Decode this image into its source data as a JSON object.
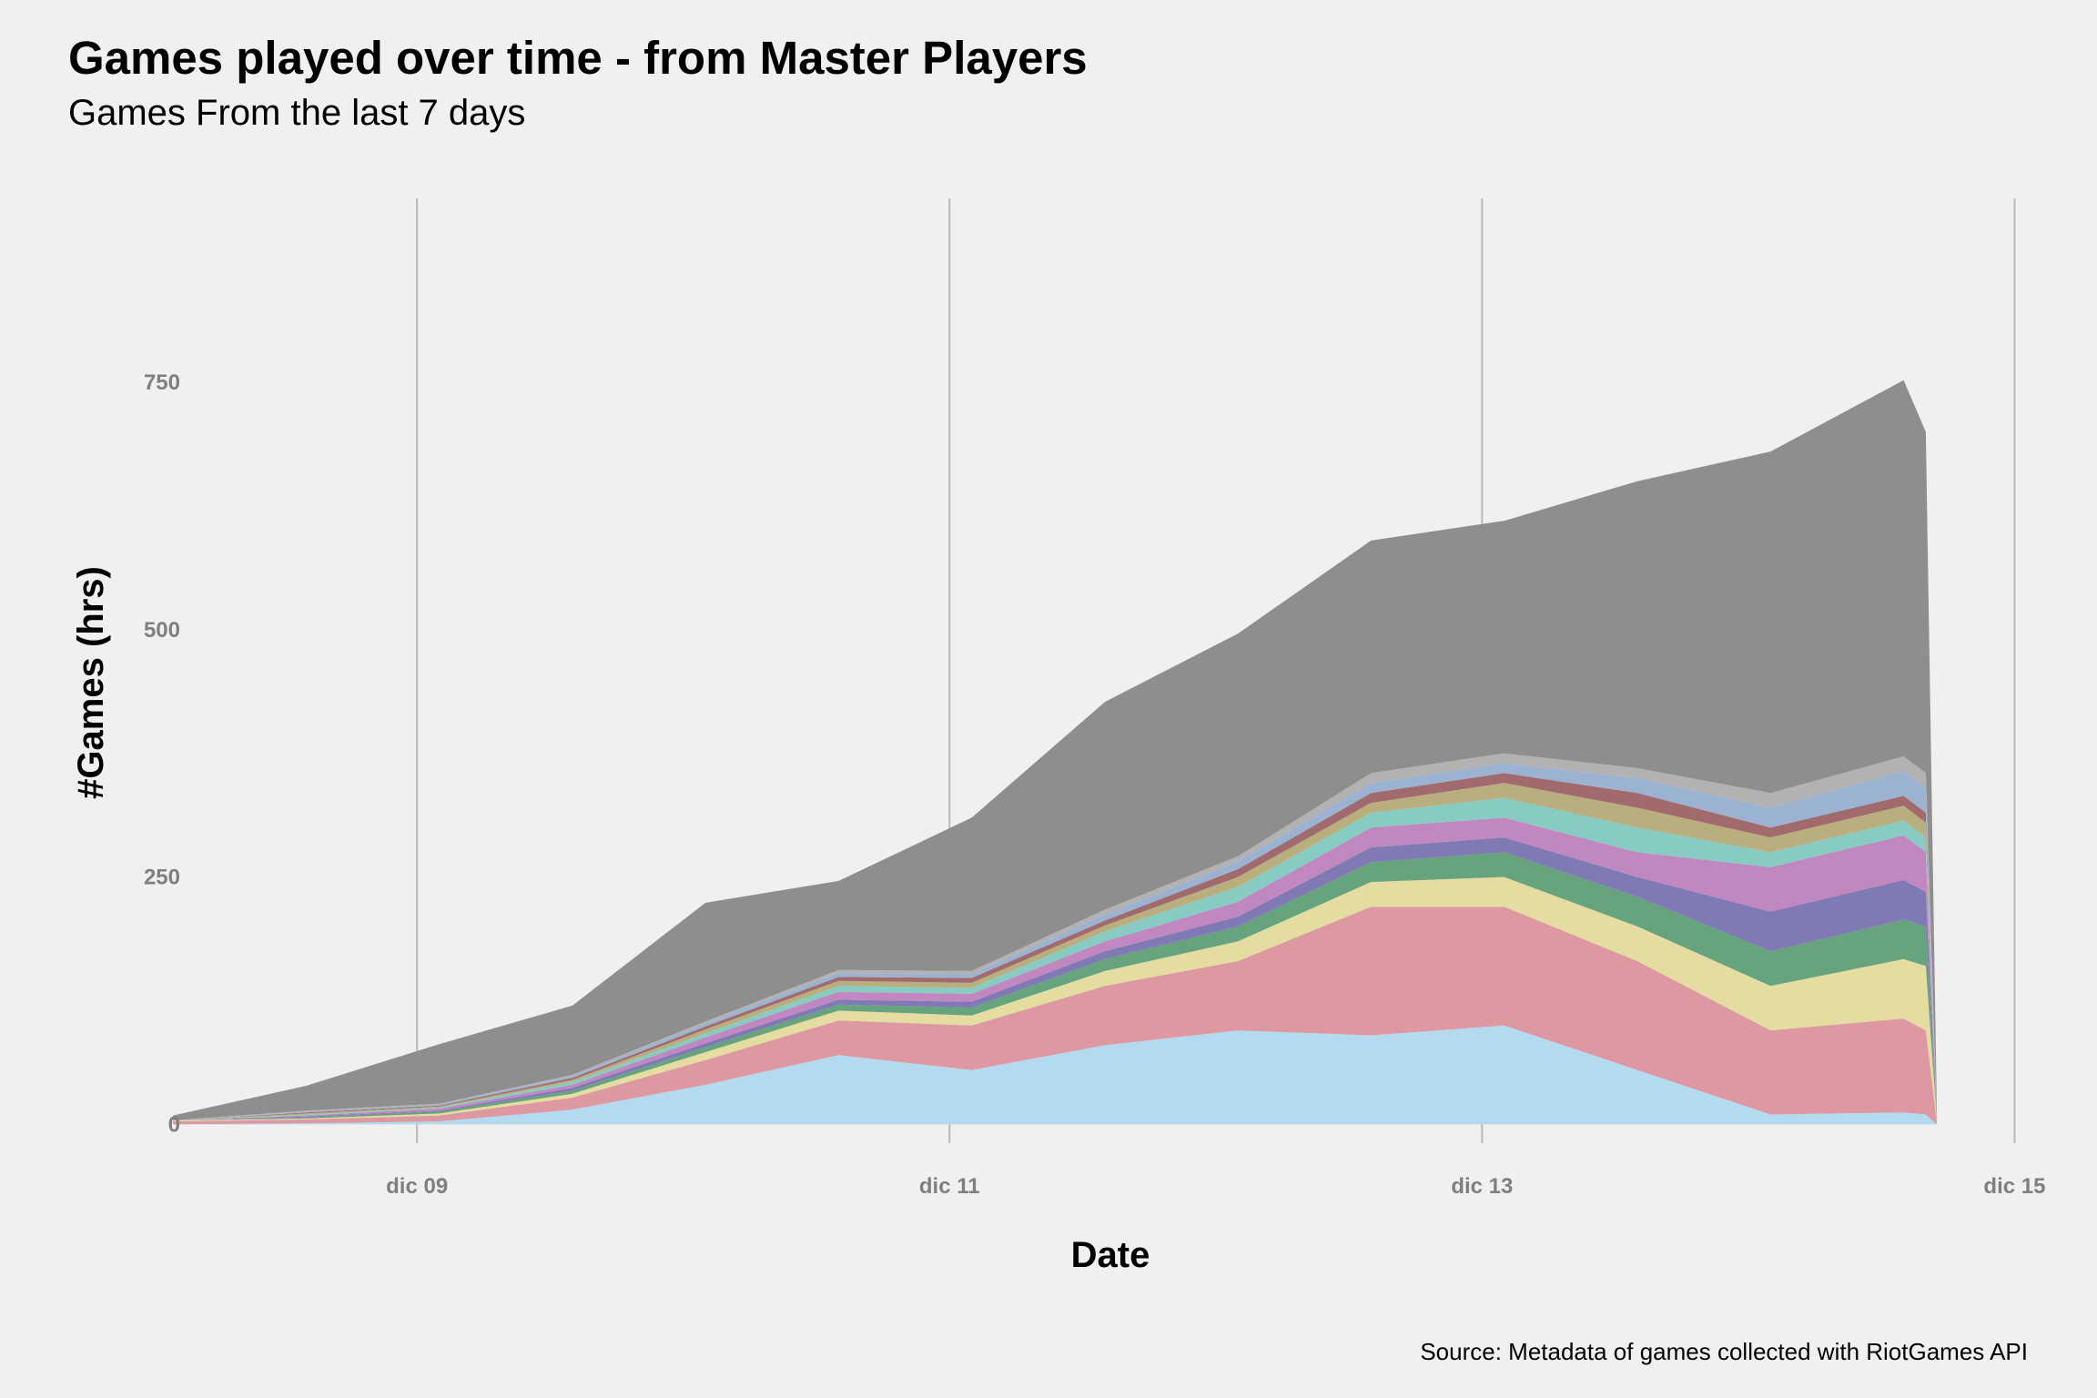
{
  "chart_data": {
    "type": "area",
    "stacked": true,
    "title": "Games played over time - from Master Players",
    "subtitle": "Games From the last 7 days",
    "xlabel": "Date",
    "ylabel": "#Games (hrs)",
    "caption": "Source: Metadata of games collected with RiotGames API",
    "x_ticks": [
      "dic 09",
      "dic 11",
      "dic 13",
      "dic 15"
    ],
    "x_tick_hours": [
      36,
      84,
      132,
      180
    ],
    "y_ticks": [
      0,
      250,
      500,
      750
    ],
    "xlim_hours": [
      14,
      183
    ],
    "ylim": [
      -30,
      945
    ],
    "grid": {
      "x_major": true,
      "y": false
    },
    "legend": "none",
    "x_hours": [
      14,
      26,
      38,
      50,
      62,
      74,
      86,
      98,
      110,
      122,
      134,
      146,
      158,
      170,
      172,
      173
    ],
    "series": [
      {
        "color": "#b3daef",
        "values": [
          0,
          1,
          3,
          15,
          40,
          70,
          55,
          80,
          95,
          90,
          100,
          55,
          10,
          12,
          10,
          0
        ]
      },
      {
        "color": "#dd98a2",
        "values": [
          3,
          4,
          6,
          12,
          25,
          35,
          45,
          60,
          70,
          130,
          120,
          110,
          85,
          95,
          85,
          2
        ]
      },
      {
        "color": "#e4dca0",
        "values": [
          1,
          1,
          2,
          4,
          8,
          10,
          10,
          15,
          20,
          25,
          30,
          35,
          45,
          60,
          65,
          1
        ]
      },
      {
        "color": "#67a37c",
        "values": [
          0,
          1,
          2,
          3,
          5,
          6,
          8,
          12,
          15,
          20,
          25,
          30,
          35,
          40,
          40,
          0
        ]
      },
      {
        "color": "#7f7ab3",
        "values": [
          0,
          1,
          1,
          3,
          4,
          5,
          6,
          8,
          10,
          15,
          15,
          20,
          40,
          40,
          35,
          0
        ]
      },
      {
        "color": "#c187c0",
        "values": [
          0,
          1,
          2,
          3,
          6,
          8,
          8,
          10,
          15,
          20,
          20,
          25,
          45,
          45,
          40,
          1
        ]
      },
      {
        "color": "#87cbc3",
        "values": [
          0,
          1,
          1,
          3,
          4,
          6,
          6,
          10,
          15,
          15,
          20,
          25,
          15,
          15,
          15,
          0
        ]
      },
      {
        "color": "#b9ae7e",
        "values": [
          0,
          1,
          1,
          2,
          4,
          5,
          5,
          6,
          10,
          10,
          15,
          20,
          15,
          15,
          15,
          0
        ]
      },
      {
        "color": "#a16b6e",
        "values": [
          0,
          1,
          1,
          2,
          3,
          4,
          5,
          5,
          8,
          10,
          10,
          15,
          10,
          10,
          10,
          0
        ]
      },
      {
        "color": "#9bb3d1",
        "values": [
          0,
          1,
          1,
          2,
          3,
          4,
          4,
          6,
          8,
          10,
          10,
          15,
          20,
          25,
          25,
          1
        ]
      },
      {
        "color": "#b2b2b2",
        "values": [
          0,
          1,
          1,
          1,
          2,
          3,
          3,
          5,
          5,
          10,
          10,
          10,
          15,
          15,
          15,
          0
        ]
      },
      {
        "color": "#8e8e8e",
        "values": [
          5,
          25,
          60,
          70,
          120,
          90,
          155,
          210,
          225,
          235,
          235,
          290,
          345,
          380,
          345,
          4
        ]
      }
    ]
  }
}
